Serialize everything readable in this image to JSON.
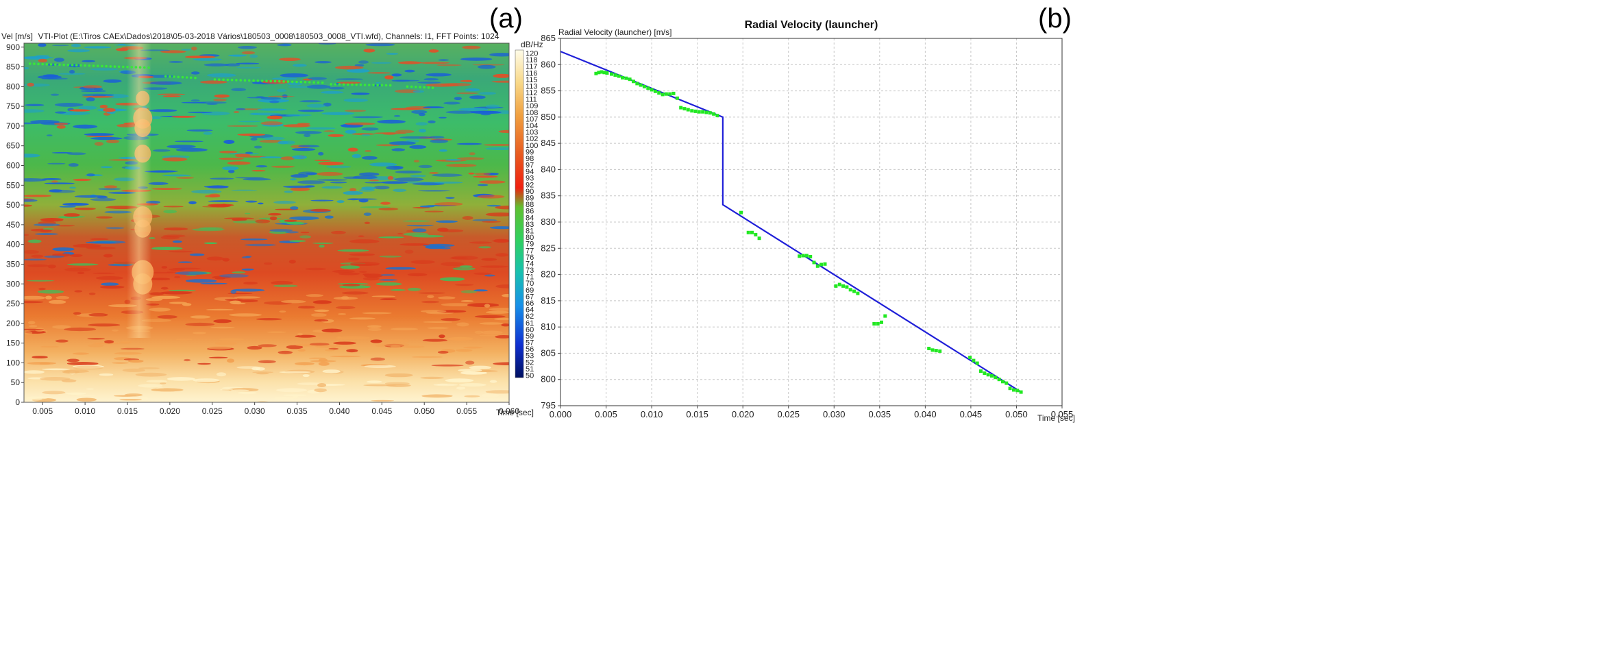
{
  "panels": {
    "a_label": "(a)",
    "b_label": "(b)"
  },
  "chart_data": [
    {
      "type": "heatmap",
      "title": "VTI-Plot (E:\\Tiros CAEx\\Dados\\2018\\05-03-2018 Vários\\180503_0008\\180503_0008_VTI.wfd), Channels: I1, FFT Points: 1024",
      "ylabel": "Vel [m/s]",
      "xlabel": "Time [sec]",
      "xlim": [
        0.0028,
        0.06
      ],
      "ylim": [
        0,
        910
      ],
      "x_ticks": [
        0.005,
        0.01,
        0.015,
        0.02,
        0.025,
        0.03,
        0.035,
        0.04,
        0.045,
        0.05,
        0.055,
        0.06
      ],
      "x_tick_labels": [
        "0.005",
        "0.010",
        "0.015",
        "0.020",
        "0.025",
        "0.030",
        "0.035",
        "0.040",
        "0.045",
        "0.050",
        "0.055",
        "0.060"
      ],
      "y_ticks": [
        0,
        50,
        100,
        150,
        200,
        250,
        300,
        350,
        400,
        450,
        500,
        550,
        600,
        650,
        700,
        750,
        800,
        850,
        900
      ],
      "y_tick_labels": [
        "0",
        "50",
        "100",
        "150",
        "200",
        "250",
        "300",
        "350",
        "400",
        "450",
        "500",
        "550",
        "600",
        "650",
        "700",
        "750",
        "800",
        "850",
        "900"
      ],
      "colorbar": {
        "label": "dB/Hz",
        "min": 50,
        "max": 120,
        "tick_labels": [
          "120",
          "118",
          "117",
          "116",
          "115",
          "113",
          "112",
          "111",
          "109",
          "108",
          "107",
          "104",
          "103",
          "102",
          "100",
          "99",
          "98",
          "97",
          "94",
          "93",
          "92",
          "90",
          "89",
          "88",
          "86",
          "84",
          "83",
          "81",
          "80",
          "79",
          "77",
          "76",
          "74",
          "73",
          "71",
          "70",
          "69",
          "67",
          "66",
          "64",
          "62",
          "61",
          "60",
          "59",
          "57",
          "56",
          "53",
          "52",
          "51",
          "50"
        ]
      },
      "tracked_points": {
        "description": "green dotted velocity tracks",
        "segments": [
          {
            "x_start": 0.0035,
            "x_end": 0.0175,
            "v_start": 858,
            "v_end": 848
          },
          {
            "x_start": 0.0195,
            "x_end": 0.023,
            "v_start": 826,
            "v_end": 822
          },
          {
            "x_start": 0.0253,
            "x_end": 0.038,
            "v_start": 818,
            "v_end": 810
          },
          {
            "x_start": 0.039,
            "x_end": 0.046,
            "v_start": 806,
            "v_end": 803
          },
          {
            "x_start": 0.048,
            "x_end": 0.051,
            "v_start": 800,
            "v_end": 797
          }
        ]
      }
    },
    {
      "type": "line",
      "title": "Radial Velocity (launcher)",
      "ylabel": "Radial Velocity (launcher) [m/s]",
      "xlabel": "Time [sec]",
      "xlim": [
        0.0,
        0.055
      ],
      "ylim": [
        795,
        865
      ],
      "grid": true,
      "x_ticks": [
        0.0,
        0.005,
        0.01,
        0.015,
        0.02,
        0.025,
        0.03,
        0.035,
        0.04,
        0.045,
        0.05,
        0.055
      ],
      "x_tick_labels": [
        "0.000",
        "0.005",
        "0.010",
        "0.015",
        "0.020",
        "0.025",
        "0.030",
        "0.035",
        "0.040",
        "0.045",
        "0.050",
        "0.055"
      ],
      "y_ticks": [
        795,
        800,
        805,
        810,
        815,
        820,
        825,
        830,
        835,
        840,
        845,
        850,
        855,
        860,
        865
      ],
      "y_tick_labels": [
        "795",
        "800",
        "805",
        "810",
        "815",
        "820",
        "825",
        "830",
        "835",
        "840",
        "845",
        "850",
        "855",
        "860",
        "865"
      ],
      "series": [
        {
          "name": "fit",
          "color": "#1f1fd8",
          "x": [
            0.0,
            0.0178,
            0.0178,
            0.0505
          ],
          "y": [
            862.5,
            850.0,
            833.3,
            797.6
          ]
        },
        {
          "name": "measured",
          "color": "#22e822",
          "x": [
            0.0039,
            0.0042,
            0.0045,
            0.0048,
            0.0051,
            0.0056,
            0.006,
            0.0064,
            0.0068,
            0.0072,
            0.0076,
            0.008,
            0.0084,
            0.0088,
            0.0092,
            0.0096,
            0.01,
            0.0104,
            0.0108,
            0.0112,
            0.0116,
            0.012,
            0.0124,
            0.0128,
            0.0132,
            0.0136,
            0.014,
            0.0144,
            0.0148,
            0.0152,
            0.0156,
            0.016,
            0.0164,
            0.0168,
            0.0172,
            0.0198,
            0.0206,
            0.021,
            0.0214,
            0.0218,
            0.0262,
            0.0266,
            0.027,
            0.0274,
            0.0278,
            0.0282,
            0.0286,
            0.029,
            0.0302,
            0.0306,
            0.031,
            0.0314,
            0.0318,
            0.0322,
            0.0326,
            0.0344,
            0.0348,
            0.0352,
            0.0356,
            0.0404,
            0.0408,
            0.0412,
            0.0416,
            0.0449,
            0.0453,
            0.0457,
            0.0461,
            0.0465,
            0.0469,
            0.0473,
            0.0477,
            0.0481,
            0.0485,
            0.0489,
            0.0493,
            0.0497,
            0.0501,
            0.0505
          ],
          "y": [
            858.3,
            858.5,
            858.6,
            858.5,
            858.4,
            858.2,
            858.0,
            857.8,
            857.5,
            857.4,
            857.2,
            856.8,
            856.4,
            856.1,
            855.8,
            855.5,
            855.2,
            854.9,
            854.6,
            854.3,
            854.4,
            854.4,
            854.5,
            853.6,
            851.8,
            851.6,
            851.4,
            851.2,
            851.1,
            851.0,
            851.0,
            850.9,
            850.8,
            850.6,
            850.3,
            831.8,
            828.0,
            828.0,
            827.6,
            826.9,
            823.5,
            823.6,
            823.6,
            823.4,
            822.3,
            821.6,
            821.9,
            822.0,
            817.8,
            818.1,
            817.8,
            817.6,
            817.1,
            816.8,
            816.4,
            810.6,
            810.6,
            810.9,
            812.1,
            805.9,
            805.6,
            805.5,
            805.4,
            804.2,
            803.6,
            803.1,
            801.6,
            801.2,
            800.9,
            800.7,
            800.4,
            800.0,
            799.6,
            799.3,
            798.3,
            798.0,
            797.9,
            797.6
          ]
        }
      ]
    }
  ]
}
